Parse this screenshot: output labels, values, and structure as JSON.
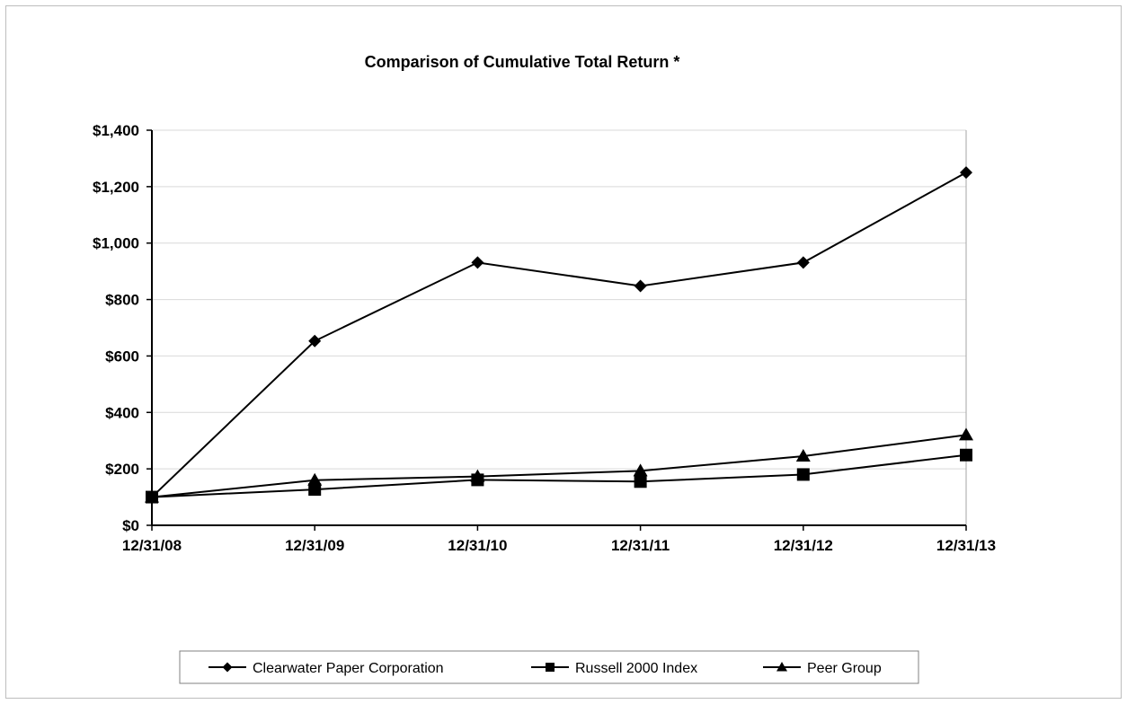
{
  "chart_data": {
    "type": "line",
    "title": "Comparison of Cumulative Total Return *",
    "xlabel": "",
    "ylabel": "",
    "categories": [
      "12/31/08",
      "12/31/09",
      "12/31/10",
      "12/31/11",
      "12/31/12",
      "12/31/13"
    ],
    "ylim": [
      0,
      1400
    ],
    "yticks": [
      0,
      200,
      400,
      600,
      800,
      1000,
      1200,
      1400
    ],
    "ytick_labels": [
      "$0",
      "$200",
      "$400",
      "$600",
      "$800",
      "$1,000",
      "$1,200",
      "$1,400"
    ],
    "grid": true,
    "legend_position": "bottom",
    "series": [
      {
        "name": "Clearwater Paper Corporation",
        "marker": "diamond",
        "values": [
          100,
          653,
          931,
          848,
          931,
          1250
        ]
      },
      {
        "name": "Russell 2000 Index",
        "marker": "square",
        "values": [
          100,
          127,
          161,
          155,
          180,
          249
        ]
      },
      {
        "name": "Peer Group",
        "marker": "triangle",
        "values": [
          100,
          160,
          173,
          193,
          245,
          320
        ]
      }
    ],
    "colors": {
      "line": "#000000",
      "grid": "#d9d9d9",
      "axis": "#000000"
    }
  }
}
